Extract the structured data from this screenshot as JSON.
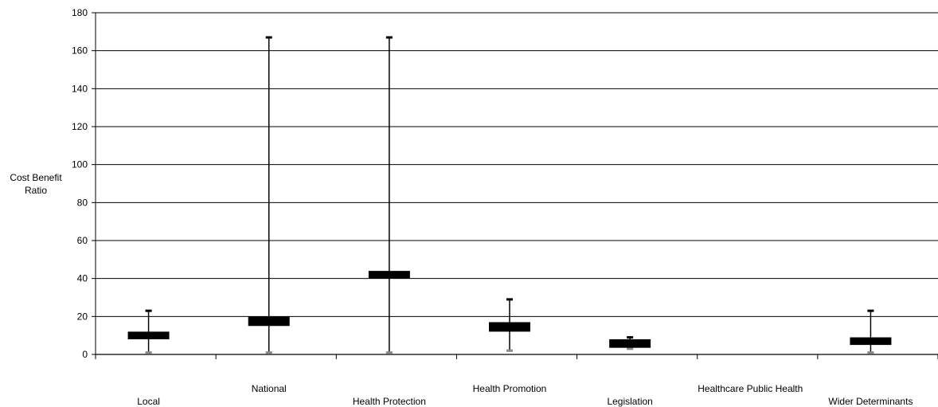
{
  "chart_data": {
    "type": "box",
    "ylabel": "Cost Benefit Ratio",
    "ylim": [
      0,
      180
    ],
    "yticks": [
      0,
      20,
      40,
      60,
      80,
      100,
      120,
      140,
      160,
      180
    ],
    "grid": true,
    "categories": [
      "Local",
      "National",
      "Health Protection",
      "Health Promotion",
      "Legislation",
      "Healthcare Public Health",
      "Wider Determinants"
    ],
    "boxes": [
      {
        "category": "Local",
        "min": 1,
        "q1": 8,
        "q3": 12,
        "max": 23
      },
      {
        "category": "National",
        "min": 1,
        "q1": 15,
        "q3": 20,
        "max": 167
      },
      {
        "category": "Health Protection",
        "min": 1,
        "q1": 40,
        "q3": 44,
        "max": 167
      },
      {
        "category": "Health Promotion",
        "min": 2,
        "q1": 12,
        "q3": 17,
        "max": 29
      },
      {
        "category": "Legislation",
        "min": 3,
        "q1": 3.5,
        "q3": 8,
        "max": 9
      },
      {
        "category": "Healthcare Public Health",
        "min": null,
        "q1": null,
        "q3": null,
        "max": null
      },
      {
        "category": "Wider Determinants",
        "min": 1,
        "q1": 5,
        "q3": 9,
        "max": 23
      }
    ]
  }
}
